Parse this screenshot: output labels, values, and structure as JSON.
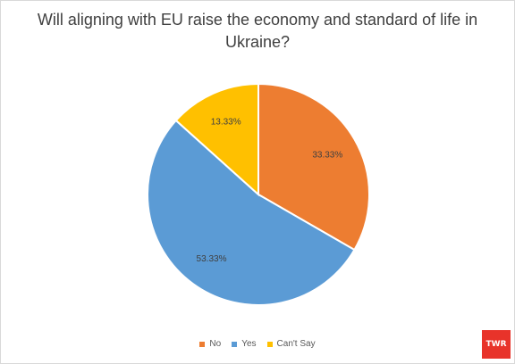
{
  "chart_data": {
    "type": "pie",
    "title": "Will aligning with EU raise the economy and standard of life in Ukraine?",
    "slices": [
      {
        "label": "No",
        "value": 33.33,
        "display": "33.33%",
        "color": "#ED7D31"
      },
      {
        "label": "Yes",
        "value": 53.33,
        "display": "53.33%",
        "color": "#5B9BD5"
      },
      {
        "label": "Can't Say",
        "value": 13.33,
        "display": "13.33%",
        "color": "#FFC000"
      }
    ],
    "start_angle": "12 o'clock, clockwise",
    "legend_position": "bottom"
  },
  "logo_text": "TWR"
}
